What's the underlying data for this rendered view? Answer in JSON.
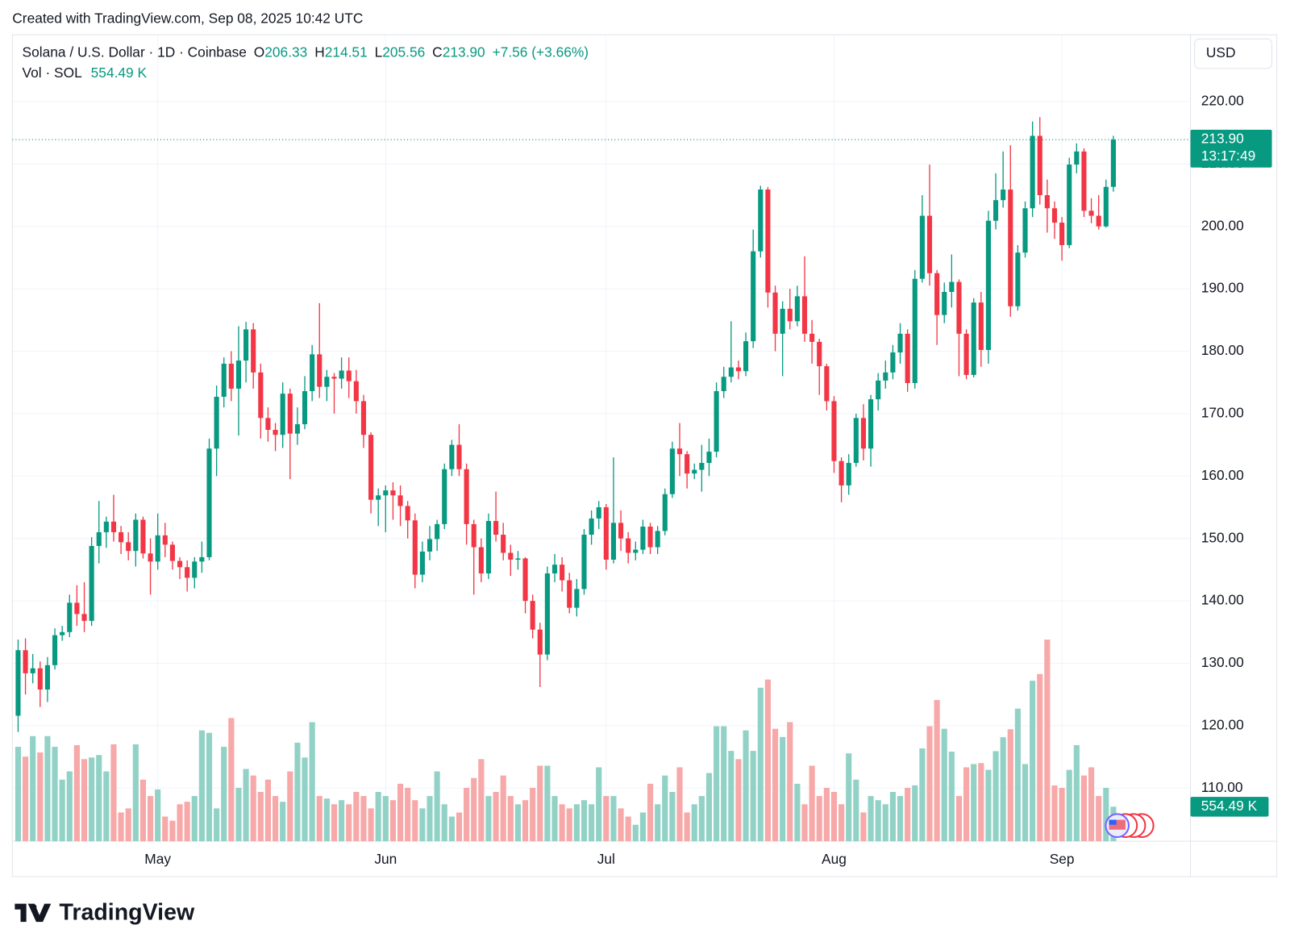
{
  "chart_data": {
    "type": "candlestick",
    "watermark": "Created with TradingView.com, Sep 08, 2025 10:42 UTC",
    "brand": "TradingView",
    "currency": "USD",
    "legend": {
      "symbol": "Solana / U.S. Dollar · 1D · Coinbase",
      "fields": [
        {
          "key": "O",
          "value": "206.33"
        },
        {
          "key": "H",
          "value": "214.51"
        },
        {
          "key": "L",
          "value": "205.56"
        },
        {
          "key": "C",
          "value": "213.90"
        }
      ],
      "change": "+7.56 (+3.66%)",
      "volume_title": "Vol · SOL",
      "volume_value": "554.49 K"
    },
    "last_price_label": "213.90",
    "countdown": "13:17:49",
    "up_color": "#089981",
    "down_color": "#f23645",
    "up_volume_color": "#92d2c6",
    "down_volume_color": "#f7a8a8",
    "grid": true,
    "ylim": [
      101.5,
      230.7
    ],
    "yticks": [
      {
        "value": 110,
        "label": "110.00"
      },
      {
        "value": 120,
        "label": "120.00"
      },
      {
        "value": 130,
        "label": "130.00"
      },
      {
        "value": 140,
        "label": "140.00"
      },
      {
        "value": 150,
        "label": "150.00"
      },
      {
        "value": 160,
        "label": "160.00"
      },
      {
        "value": 170,
        "label": "170.00"
      },
      {
        "value": 180,
        "label": "180.00"
      },
      {
        "value": 190,
        "label": "190.00"
      },
      {
        "value": 200,
        "label": "200.00"
      },
      {
        "value": 210,
        "label": "210.00"
      },
      {
        "value": 220,
        "label": "220.00"
      }
    ],
    "xticks": [
      {
        "value": 19,
        "label": "May"
      },
      {
        "value": 50,
        "label": "Jun"
      },
      {
        "value": 80,
        "label": "Jul"
      },
      {
        "value": 111,
        "label": "Aug"
      },
      {
        "value": 142,
        "label": "Sep"
      }
    ],
    "open": [
      121.6,
      132.1,
      128.4,
      129.2,
      125.8,
      129.7,
      134.5,
      135.0,
      139.7,
      137.9,
      136.8,
      148.8,
      151.0,
      152.7,
      151.0,
      149.4,
      148.0,
      153.0,
      147.6,
      146.3,
      150.5,
      149.0,
      146.4,
      145.4,
      143.7,
      146.3,
      147.0,
      164.4,
      172.7,
      178.0,
      174.0,
      178.5,
      183.5,
      176.6,
      169.3,
      167.4,
      166.6,
      173.2,
      166.8,
      168.3,
      173.6,
      179.5,
      174.3,
      175.9,
      175.6,
      176.9,
      175.2,
      172.0,
      166.6,
      156.2,
      156.9,
      157.7,
      156.9,
      155.2,
      152.9,
      144.2,
      147.9,
      149.9,
      152.3,
      161.1,
      165.0,
      161.1,
      152.3,
      148.6,
      144.4,
      152.8,
      150.6,
      147.7,
      146.6,
      146.8,
      140.0,
      135.4,
      131.4,
      144.4,
      145.8,
      143.3,
      138.9,
      141.9,
      150.6,
      153.2,
      155.0,
      146.6,
      152.5,
      150.0,
      147.7,
      148.2,
      151.9,
      148.6,
      151.2,
      157.1,
      164.4,
      163.5,
      160.4,
      161.0,
      162.1,
      163.9,
      173.6,
      175.9,
      177.4,
      176.8,
      181.6,
      196.0,
      205.9,
      189.4,
      182.8,
      186.8,
      184.8,
      188.8,
      182.8,
      181.5,
      177.6,
      172.0,
      162.4,
      158.5,
      162.1,
      169.3,
      164.4,
      172.3,
      175.3,
      176.6,
      179.8,
      182.8,
      174.9,
      191.6,
      201.7,
      192.5,
      185.8,
      189.5,
      191.1,
      182.8,
      176.2,
      187.8,
      180.2,
      200.9,
      204.2,
      205.9,
      187.2,
      195.8,
      202.9,
      214.5,
      205.0,
      202.9,
      200.6,
      197.0,
      209.9,
      212.0,
      202.5,
      201.7,
      200.0,
      206.33
    ],
    "high": [
      133.8,
      134.0,
      131.5,
      130.3,
      131.0,
      135.6,
      136.0,
      141.0,
      142.5,
      143.0,
      150.2,
      156.0,
      153.5,
      157.0,
      152.0,
      151.0,
      154.0,
      153.5,
      150.0,
      154.0,
      152.5,
      149.5,
      147.0,
      146.5,
      147.0,
      149.5,
      166.0,
      174.5,
      179.0,
      180.0,
      184.0,
      184.7,
      184.5,
      178.0,
      171.0,
      168.5,
      175.0,
      174.0,
      171.0,
      176.0,
      181.0,
      187.7,
      177.0,
      176.5,
      179.0,
      179.0,
      177.0,
      173.0,
      167.0,
      158.0,
      158.5,
      159.0,
      158.5,
      156.0,
      154.0,
      149.5,
      152.0,
      153.0,
      162.0,
      165.8,
      168.3,
      162.0,
      153.0,
      150.0,
      154.0,
      157.5,
      152.5,
      149.0,
      148.0,
      147.0,
      141.0,
      136.5,
      145.5,
      147.5,
      147.0,
      144.5,
      143.5,
      151.5,
      154.5,
      156.0,
      155.5,
      163.0,
      154.5,
      151.0,
      149.5,
      153.0,
      152.5,
      152.0,
      158.0,
      165.5,
      168.5,
      164.0,
      162.0,
      165.0,
      166.0,
      175.0,
      177.5,
      184.8,
      178.5,
      183.0,
      199.5,
      206.5,
      206.3,
      190.5,
      188.0,
      190.0,
      190.5,
      195.2,
      185.0,
      182.0,
      178.0,
      172.8,
      163.0,
      163.5,
      170.0,
      171.5,
      173.0,
      176.5,
      178.5,
      181.0,
      184.5,
      183.5,
      193.0,
      205.0,
      209.9,
      193.0,
      191.0,
      195.5,
      191.5,
      183.5,
      188.5,
      189.5,
      202.5,
      208.5,
      212.0,
      213.0,
      197.0,
      204.0,
      216.8,
      217.5,
      207.5,
      204.0,
      201.5,
      211.0,
      213.3,
      212.5,
      204.5,
      205.0,
      207.5,
      214.51
    ],
    "low": [
      119.0,
      125.0,
      126.8,
      123.0,
      123.8,
      129.0,
      133.6,
      134.2,
      136.0,
      135.0,
      136.0,
      146.0,
      148.5,
      149.5,
      147.5,
      146.5,
      145.5,
      146.8,
      141.0,
      145.0,
      147.0,
      145.0,
      143.5,
      141.5,
      142.0,
      144.5,
      146.5,
      160.0,
      171.0,
      172.0,
      166.5,
      175.0,
      174.0,
      166.0,
      165.5,
      164.0,
      164.5,
      159.5,
      165.0,
      167.5,
      172.0,
      172.5,
      172.0,
      170.0,
      174.0,
      172.5,
      170.0,
      164.5,
      154.0,
      152.0,
      151.0,
      153.0,
      152.0,
      150.0,
      142.0,
      143.0,
      146.5,
      148.0,
      151.5,
      160.0,
      160.0,
      149.0,
      141.0,
      143.0,
      143.5,
      149.5,
      146.5,
      144.0,
      145.0,
      138.0,
      134.0,
      126.2,
      130.5,
      143.0,
      141.5,
      138.0,
      137.5,
      141.0,
      149.0,
      151.5,
      145.0,
      146.0,
      148.0,
      146.0,
      146.5,
      147.5,
      147.5,
      147.5,
      150.5,
      156.5,
      160.0,
      158.0,
      159.5,
      157.5,
      160.0,
      163.0,
      172.5,
      175.0,
      175.5,
      176.0,
      180.5,
      195.0,
      187.0,
      180.0,
      176.0,
      183.5,
      184.0,
      181.5,
      178.0,
      173.0,
      170.5,
      160.5,
      155.8,
      157.0,
      161.5,
      162.5,
      161.5,
      170.5,
      174.0,
      175.5,
      178.0,
      173.5,
      174.0,
      191.0,
      190.5,
      181.0,
      184.5,
      187.0,
      176.0,
      175.5,
      175.8,
      177.5,
      178.0,
      199.5,
      203.0,
      185.5,
      186.5,
      195.0,
      201.5,
      203.5,
      199.0,
      198.0,
      194.5,
      196.5,
      208.5,
      201.5,
      200.5,
      199.5,
      199.8,
      205.56
    ],
    "close": [
      132.1,
      128.4,
      129.2,
      125.8,
      129.7,
      134.5,
      135.0,
      139.7,
      137.9,
      136.8,
      148.8,
      151.0,
      152.7,
      151.0,
      149.4,
      148.0,
      153.0,
      147.6,
      146.3,
      150.5,
      149.0,
      146.4,
      145.4,
      143.7,
      146.3,
      147.0,
      164.4,
      172.7,
      178.0,
      174.0,
      178.5,
      183.5,
      176.6,
      169.3,
      167.4,
      166.6,
      173.2,
      166.8,
      168.3,
      173.6,
      179.5,
      174.3,
      175.9,
      175.6,
      176.9,
      175.2,
      172.0,
      166.6,
      156.2,
      156.9,
      157.7,
      156.9,
      155.2,
      152.9,
      144.2,
      147.9,
      149.9,
      152.3,
      161.1,
      165.0,
      161.1,
      152.3,
      148.6,
      144.4,
      152.8,
      150.6,
      147.7,
      146.6,
      146.8,
      140.0,
      135.4,
      131.4,
      144.4,
      145.8,
      143.3,
      138.9,
      141.9,
      150.6,
      153.2,
      155.0,
      146.6,
      152.5,
      150.0,
      147.7,
      148.2,
      151.9,
      148.6,
      151.2,
      157.1,
      164.4,
      163.5,
      160.4,
      161.0,
      162.1,
      163.9,
      173.6,
      175.9,
      177.4,
      176.8,
      181.6,
      196.0,
      205.9,
      189.4,
      182.8,
      186.8,
      184.8,
      188.8,
      182.8,
      181.5,
      177.6,
      172.0,
      162.4,
      158.5,
      162.1,
      169.3,
      164.4,
      172.3,
      175.3,
      176.6,
      179.8,
      182.8,
      174.9,
      191.6,
      201.7,
      192.5,
      185.8,
      189.5,
      191.1,
      182.8,
      176.2,
      187.8,
      180.2,
      200.9,
      204.2,
      205.9,
      187.2,
      195.8,
      202.9,
      214.5,
      205.0,
      202.9,
      200.6,
      197.0,
      209.9,
      212.0,
      202.5,
      201.7,
      200.0,
      206.33,
      213.9
    ],
    "volume": [
      1518,
      1360,
      1690,
      1426,
      1690,
      1518,
      990,
      1122,
      1544,
      1320,
      1346,
      1386,
      1122,
      1558,
      462,
      528,
      1558,
      990,
      726,
      832,
      396,
      330,
      594,
      634,
      726,
      1782,
      1742,
      528,
      1518,
      1980,
      858,
      1162,
      1056,
      792,
      990,
      726,
      634,
      1122,
      1584,
      1346,
      1914,
      726,
      686,
      594,
      660,
      594,
      792,
      726,
      528,
      792,
      726,
      660,
      924,
      858,
      660,
      528,
      726,
      1122,
      594,
      396,
      462,
      858,
      1016,
      1320,
      726,
      792,
      1056,
      726,
      594,
      660,
      858,
      1214,
      1214,
      726,
      594,
      528,
      594,
      660,
      594,
      1188,
      726,
      726,
      528,
      396,
      264,
      462,
      924,
      594,
      1056,
      792,
      1188,
      462,
      594,
      726,
      1096,
      1848,
      1848,
      1452,
      1320,
      1782,
      1452,
      2468,
      2600,
      1808,
      1676,
      1914,
      924,
      594,
      1214,
      726,
      858,
      792,
      594,
      1412,
      990,
      462,
      726,
      660,
      594,
      792,
      726,
      858,
      898,
      1492,
      1848,
      2270,
      1808,
      1440,
      726,
      1188,
      1240,
      1256,
      1148,
      1448,
      1672,
      1800,
      2132,
      1240,
      2580,
      2688,
      3242,
      896,
      858,
      1148,
      1544,
      1056,
      1188,
      726,
      858,
      554.49
    ]
  }
}
